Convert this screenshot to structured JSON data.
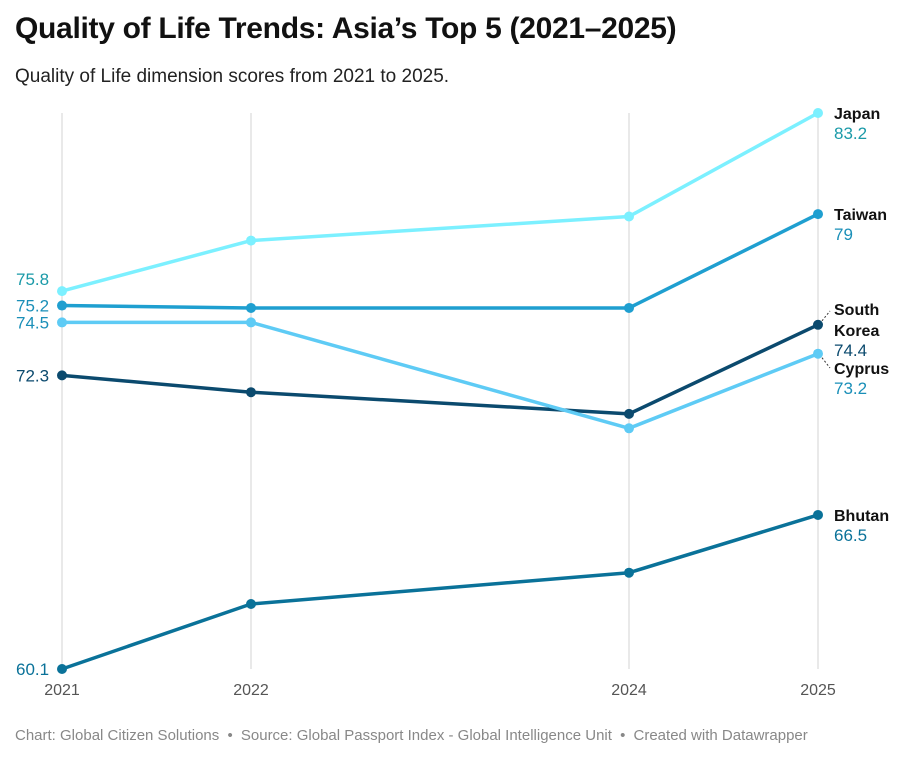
{
  "header": {
    "title": "Quality of Life Trends: Asia’s Top 5 (2021–2025)",
    "subtitle": "Quality of Life dimension scores from 2021 to 2025."
  },
  "footer": {
    "chart_credit": "Chart: Global Citizen Solutions",
    "source": "Source: Global Passport Index - Global Intelligence Unit",
    "created": "Created with Datawrapper"
  },
  "chart_data": {
    "type": "line",
    "title": "Quality of Life Trends: Asia’s Top 5 (2021–2025)",
    "subtitle": "Quality of Life dimension scores from 2021 to 2025.",
    "x": [
      2021,
      2022,
      2024,
      2025
    ],
    "x_tick_labels": [
      "2021",
      "2022",
      "2024",
      "2025"
    ],
    "ylim": [
      59.5,
      84.0
    ],
    "grid": "vertical",
    "legend": "direct labels at line ends",
    "series": [
      {
        "name": "Japan",
        "color": "#7cf0ff",
        "values": [
          75.8,
          77.9,
          78.9,
          83.2
        ],
        "start_label": "75.8",
        "end_label": "83.2",
        "value_color": "#1a9aa8"
      },
      {
        "name": "Taiwan",
        "color": "#1f9fd0",
        "values": [
          75.2,
          75.1,
          75.1,
          79.0
        ],
        "start_label": "75.2",
        "end_label": "79",
        "value_color": "#1a8fb8"
      },
      {
        "name": "South Korea",
        "color": "#0b4a6e",
        "values": [
          72.3,
          71.6,
          70.7,
          74.4
        ],
        "start_label": "72.3",
        "end_label": "74.4",
        "value_color": "#0b4a6e"
      },
      {
        "name": "Cyprus",
        "color": "#5ecbf5",
        "values": [
          74.5,
          74.5,
          70.1,
          73.2
        ],
        "start_label": "74.5",
        "end_label": "73.2",
        "value_color": "#1a8fb8"
      },
      {
        "name": "Bhutan",
        "color": "#0a7299",
        "values": [
          60.1,
          62.8,
          64.1,
          66.5
        ],
        "start_label": "60.1",
        "end_label": "66.5",
        "value_color": "#0a7299"
      }
    ]
  }
}
